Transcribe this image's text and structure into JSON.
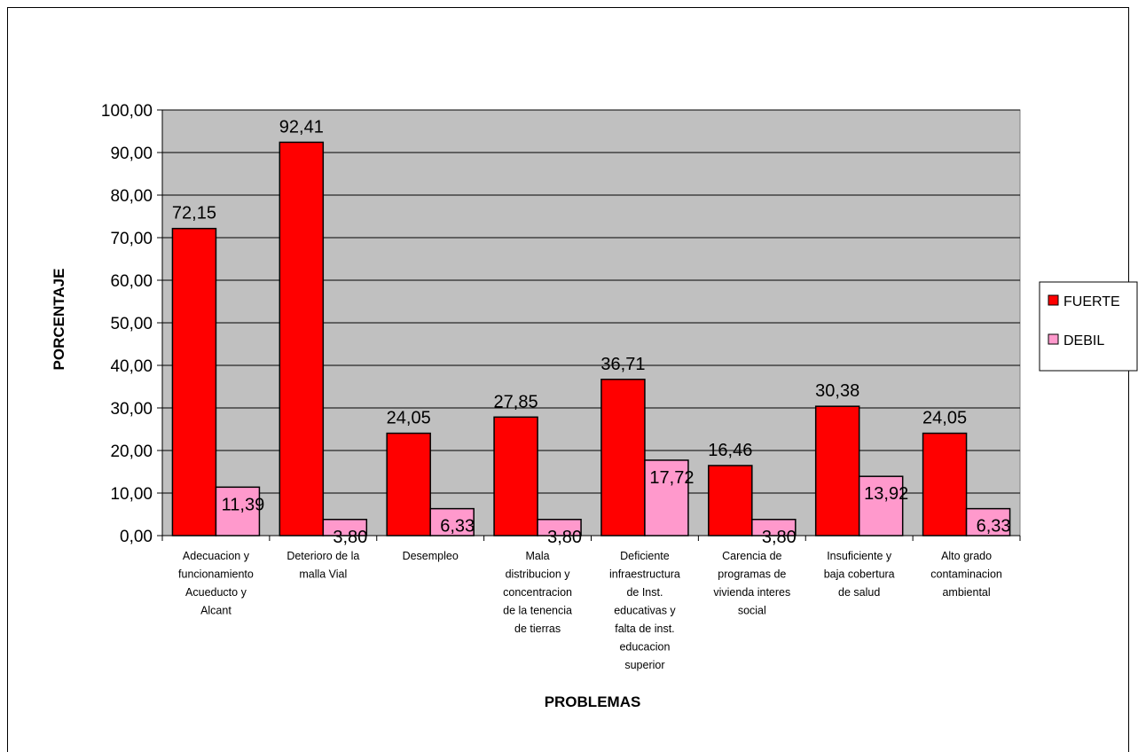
{
  "chart_data": {
    "type": "bar",
    "title": "",
    "xlabel": "PROBLEMAS",
    "ylabel": "PORCENTAJE",
    "ylim": [
      0,
      100
    ],
    "yticks": [
      "0,00",
      "10,00",
      "20,00",
      "30,00",
      "40,00",
      "50,00",
      "60,00",
      "70,00",
      "80,00",
      "90,00",
      "100,00"
    ],
    "grid": true,
    "legend_position": "right",
    "categories": [
      [
        "Adecuacion y",
        "funcionamiento",
        "Acueducto y",
        "Alcant"
      ],
      [
        "Deterioro de la",
        "malla Vial"
      ],
      [
        "Desempleo"
      ],
      [
        "Mala",
        "distribucion y",
        "concentracion",
        "de la tenencia",
        "de tierras"
      ],
      [
        "Deficiente",
        "infraestructura",
        "de Inst.",
        "educativas y",
        "falta de inst.",
        "educacion",
        "superior"
      ],
      [
        "Carencia de",
        "programas de",
        "vivienda interes",
        "social"
      ],
      [
        "Insuficiente y",
        "baja cobertura",
        "de salud"
      ],
      [
        "Alto grado",
        "contaminacion",
        "ambiental"
      ]
    ],
    "series": [
      {
        "name": "FUERTE",
        "color": "#ff0000",
        "values": [
          72.15,
          92.41,
          24.05,
          27.85,
          36.71,
          16.46,
          30.38,
          24.05
        ],
        "labels": [
          "72,15",
          "92,41",
          "24,05",
          "27,85",
          "36,71",
          "16,46",
          "30,38",
          "24,05"
        ]
      },
      {
        "name": "DEBIL",
        "color": "#ff99cc",
        "values": [
          11.39,
          3.8,
          6.33,
          3.8,
          17.72,
          3.8,
          13.92,
          6.33
        ],
        "labels": [
          "11,39",
          "3,80",
          "6,33",
          "3,80",
          "17,72",
          "3,80",
          "13,92",
          "6,33"
        ]
      }
    ],
    "colors": {
      "plot_background": "#c0c0c0",
      "gridline": "#000000"
    }
  }
}
